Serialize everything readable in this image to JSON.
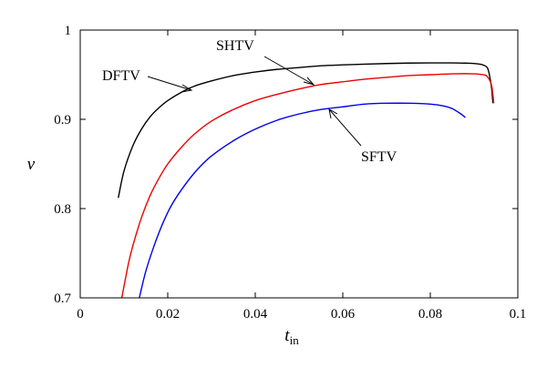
{
  "chart_data": {
    "type": "line",
    "title": "",
    "xlabel": "t",
    "xlabel_sub": "in",
    "ylabel": "ν",
    "xlim": [
      0,
      0.1
    ],
    "ylim": [
      0.7,
      1.0
    ],
    "xticks": [
      0,
      0.02,
      0.04,
      0.06,
      0.08,
      0.1
    ],
    "xtick_labels": [
      "0",
      "0.02",
      "0.04",
      "0.06",
      "0.08",
      "0.1"
    ],
    "yticks": [
      0.7,
      0.8,
      0.9,
      1.0
    ],
    "ytick_labels": [
      "0.7",
      "0.8",
      "0.9",
      "1"
    ],
    "grid": false,
    "legend": "none",
    "series": [
      {
        "name": "DFTV",
        "color": "#000000",
        "x": [
          0.0087,
          0.01,
          0.012,
          0.014,
          0.016,
          0.018,
          0.02,
          0.023,
          0.026,
          0.03,
          0.035,
          0.04,
          0.045,
          0.05,
          0.055,
          0.06,
          0.065,
          0.07,
          0.075,
          0.08,
          0.085,
          0.089,
          0.091,
          0.092,
          0.093,
          0.0935,
          0.094,
          0.0943
        ],
        "values": [
          0.812,
          0.842,
          0.87,
          0.889,
          0.903,
          0.913,
          0.921,
          0.93,
          0.937,
          0.943,
          0.949,
          0.953,
          0.956,
          0.958,
          0.96,
          0.961,
          0.9618,
          0.9625,
          0.963,
          0.9632,
          0.9632,
          0.9628,
          0.962,
          0.961,
          0.958,
          0.95,
          0.935,
          0.918
        ]
      },
      {
        "name": "SHTV",
        "color": "#ee0000",
        "x": [
          0.0095,
          0.011,
          0.012,
          0.014,
          0.016,
          0.018,
          0.02,
          0.023,
          0.026,
          0.03,
          0.035,
          0.04,
          0.045,
          0.05,
          0.055,
          0.06,
          0.065,
          0.07,
          0.075,
          0.08,
          0.085,
          0.09,
          0.092,
          0.093,
          0.094,
          0.0945
        ],
        "values": [
          0.7,
          0.738,
          0.758,
          0.79,
          0.815,
          0.834,
          0.85,
          0.868,
          0.883,
          0.898,
          0.911,
          0.921,
          0.928,
          0.934,
          0.939,
          0.942,
          0.945,
          0.947,
          0.949,
          0.95,
          0.951,
          0.951,
          0.95,
          0.948,
          0.938,
          0.918
        ]
      },
      {
        "name": "SFTV",
        "color": "#0000ee",
        "x": [
          0.0135,
          0.015,
          0.017,
          0.019,
          0.021,
          0.024,
          0.027,
          0.03,
          0.035,
          0.04,
          0.045,
          0.05,
          0.055,
          0.06,
          0.065,
          0.07,
          0.075,
          0.08,
          0.083,
          0.085,
          0.087,
          0.088
        ],
        "values": [
          0.7,
          0.73,
          0.76,
          0.785,
          0.805,
          0.827,
          0.845,
          0.859,
          0.876,
          0.889,
          0.899,
          0.906,
          0.911,
          0.914,
          0.917,
          0.918,
          0.918,
          0.917,
          0.915,
          0.912,
          0.906,
          0.902
        ]
      }
    ],
    "annotations": [
      {
        "text": "DFTV",
        "arrow_to": [
          0.025,
          0.933
        ]
      },
      {
        "text": "SHTV",
        "arrow_to": [
          0.0535,
          0.938
        ]
      },
      {
        "text": "SFTV",
        "arrow_to": [
          0.0565,
          0.912
        ]
      }
    ]
  }
}
